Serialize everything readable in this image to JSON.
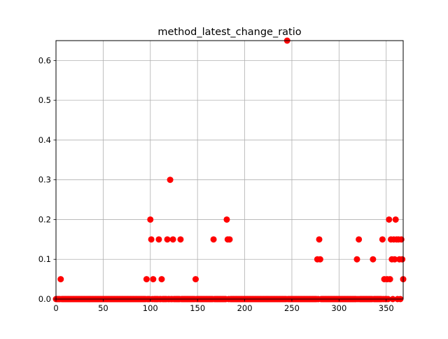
{
  "chart_data": {
    "type": "scatter",
    "title": "method_latest_change_ratio",
    "xlabel": "",
    "ylabel": "",
    "xlim": [
      0,
      368
    ],
    "ylim": [
      0,
      0.65
    ],
    "grid": true,
    "x_ticks": [
      0,
      50,
      100,
      150,
      200,
      250,
      300,
      350
    ],
    "y_ticks": [
      0.0,
      0.1,
      0.2,
      0.3,
      0.4,
      0.5,
      0.6
    ],
    "marker_color": "#ff0000",
    "nonzero_points": [
      {
        "x": 5,
        "y": 0.05
      },
      {
        "x": 96,
        "y": 0.05
      },
      {
        "x": 100,
        "y": 0.2
      },
      {
        "x": 101,
        "y": 0.15
      },
      {
        "x": 103,
        "y": 0.05
      },
      {
        "x": 109,
        "y": 0.15
      },
      {
        "x": 112,
        "y": 0.05
      },
      {
        "x": 118,
        "y": 0.15
      },
      {
        "x": 121,
        "y": 0.3
      },
      {
        "x": 124,
        "y": 0.15
      },
      {
        "x": 132,
        "y": 0.15
      },
      {
        "x": 148,
        "y": 0.05
      },
      {
        "x": 167,
        "y": 0.15
      },
      {
        "x": 181,
        "y": 0.2
      },
      {
        "x": 182,
        "y": 0.15
      },
      {
        "x": 184,
        "y": 0.15
      },
      {
        "x": 245,
        "y": 0.65
      },
      {
        "x": 277,
        "y": 0.1
      },
      {
        "x": 279,
        "y": 0.15
      },
      {
        "x": 280,
        "y": 0.1
      },
      {
        "x": 319,
        "y": 0.1
      },
      {
        "x": 321,
        "y": 0.15
      },
      {
        "x": 336,
        "y": 0.1
      },
      {
        "x": 346,
        "y": 0.15
      },
      {
        "x": 348,
        "y": 0.05
      },
      {
        "x": 351,
        "y": 0.05
      },
      {
        "x": 353,
        "y": 0.2
      },
      {
        "x": 354,
        "y": 0.05
      },
      {
        "x": 355,
        "y": 0.15
      },
      {
        "x": 356,
        "y": 0.1
      },
      {
        "x": 358,
        "y": 0.15
      },
      {
        "x": 359,
        "y": 0.1
      },
      {
        "x": 360,
        "y": 0.2
      },
      {
        "x": 361,
        "y": 0.15
      },
      {
        "x": 363,
        "y": 0.15
      },
      {
        "x": 364,
        "y": 0.1
      },
      {
        "x": 366,
        "y": 0.15
      },
      {
        "x": 367,
        "y": 0.1
      },
      {
        "x": 368,
        "y": 0.05
      }
    ],
    "zero_points_x_range": [
      0,
      368
    ]
  }
}
